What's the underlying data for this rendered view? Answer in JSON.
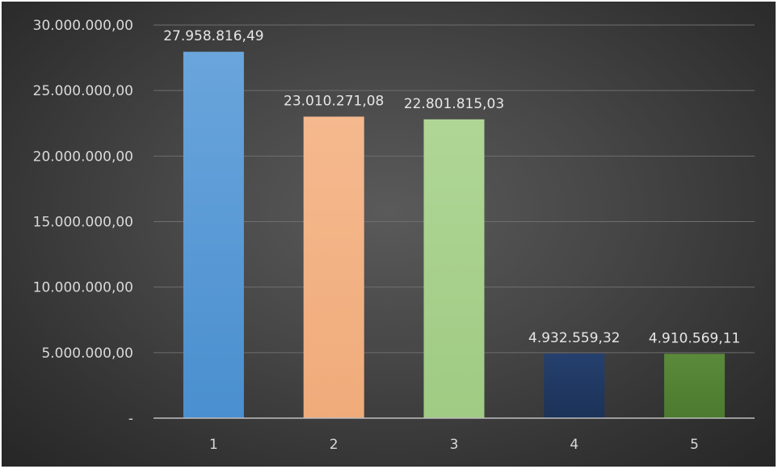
{
  "chart_data": {
    "type": "bar",
    "categories": [
      "1",
      "2",
      "3",
      "4",
      "5"
    ],
    "values": [
      27958816.49,
      23010271.08,
      22801815.03,
      4932559.32,
      4910569.11
    ],
    "data_labels": [
      "27.958.816,49",
      "23.010.271,08",
      "22.801.815,03",
      "4.932.559,32",
      "4.910.569,11"
    ],
    "colors": [
      "#5b9bd5",
      "#f4b183",
      "#a9d18e",
      "#203864",
      "#548235"
    ],
    "ylim": [
      0,
      30000000
    ],
    "yticks": [
      {
        "value": 0,
        "label": "-"
      },
      {
        "value": 5000000,
        "label": "5.000.000,00"
      },
      {
        "value": 10000000,
        "label": "10.000.000,00"
      },
      {
        "value": 15000000,
        "label": "15.000.000,00"
      },
      {
        "value": 20000000,
        "label": "20.000.000,00"
      },
      {
        "value": 25000000,
        "label": "25.000.000,00"
      },
      {
        "value": 30000000,
        "label": "30.000.000,00"
      }
    ],
    "grid": true,
    "title": "",
    "xlabel": "",
    "ylabel": ""
  }
}
